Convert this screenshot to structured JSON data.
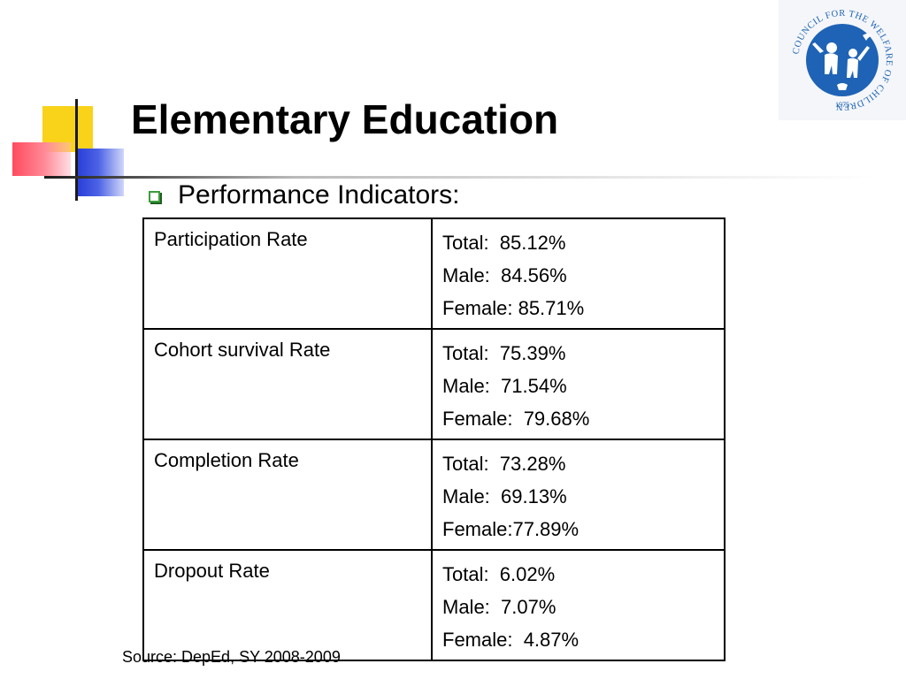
{
  "slide": {
    "title": "Elementary Education",
    "bullet": "Performance Indicators:",
    "source": "Source: DepEd, SY 2008-2009"
  },
  "logo": {
    "ring_text": "COUNCIL FOR THE WELFARE OF CHILDREN",
    "year": "1975",
    "color": "#1e63b5"
  },
  "colors": {
    "deco_yellow": "#f9d21a",
    "deco_red": "#ff4a5e",
    "deco_blue": "#2a3fd6",
    "bullet_green": "#3a9d3a"
  },
  "table": {
    "rows": [
      {
        "label": "Participation Rate",
        "values": [
          "Total:  85.12%",
          "Male:  84.56%",
          "Female: 85.71%"
        ]
      },
      {
        "label": "Cohort survival Rate",
        "values": [
          "Total:  75.39%",
          "Male:  71.54%",
          "Female:  79.68%"
        ]
      },
      {
        "label": "Completion Rate",
        "values": [
          "Total:  73.28%",
          "Male:  69.13%",
          "Female:77.89%"
        ]
      },
      {
        "label": "Dropout Rate",
        "values": [
          "Total:  6.02%",
          "Male:  7.07%",
          "Female:  4.87%"
        ]
      }
    ]
  }
}
